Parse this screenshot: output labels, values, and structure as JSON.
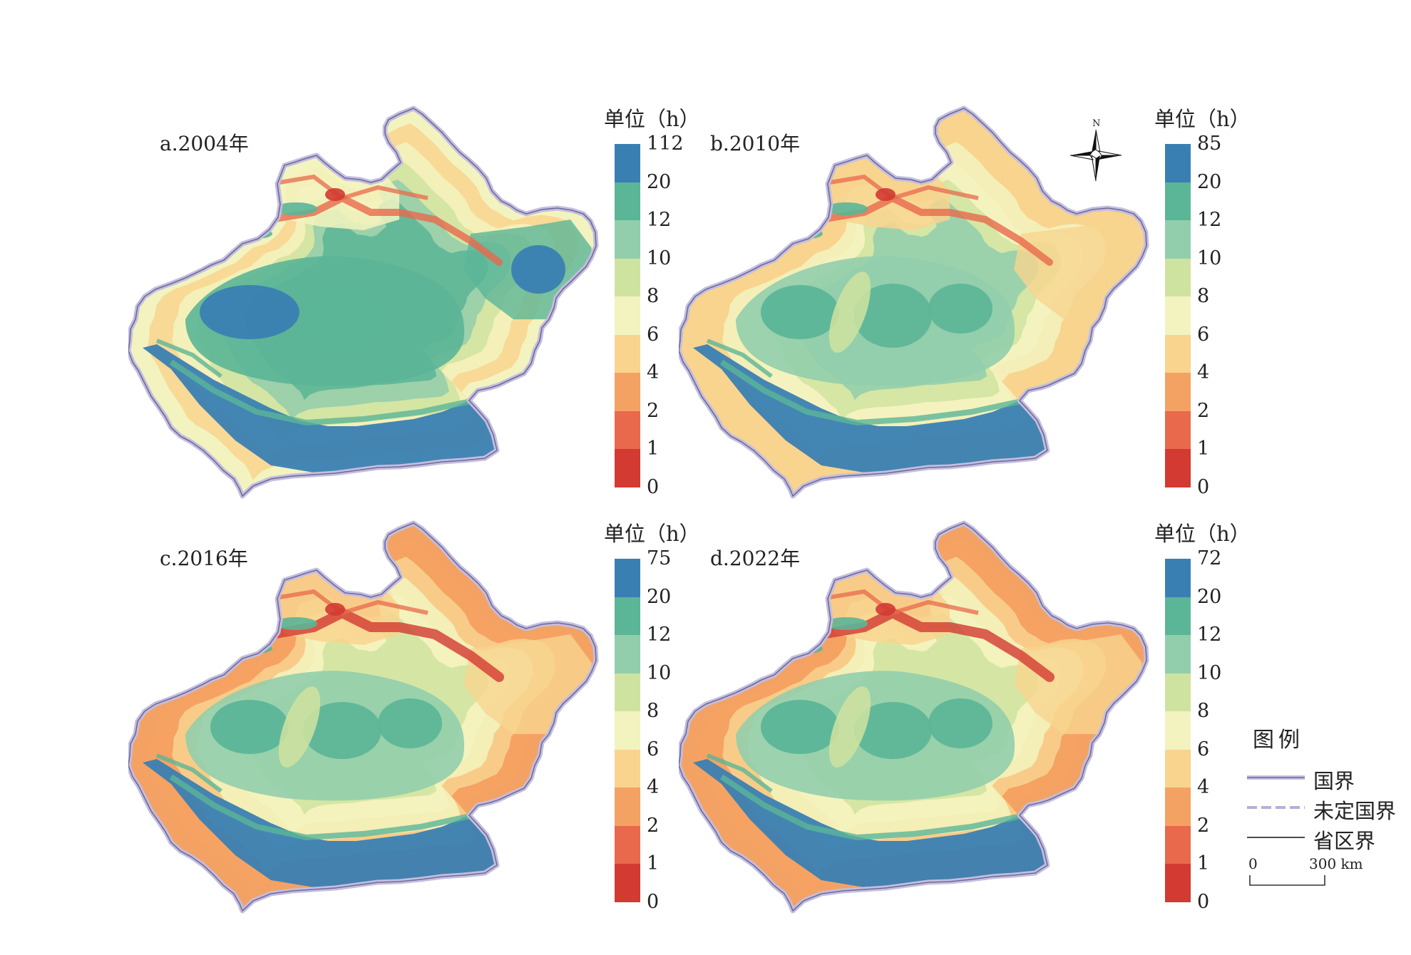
{
  "panels": [
    {
      "label": "a.2004年",
      "unit": "单位（h）",
      "ticks": [
        "112",
        "20",
        "12",
        "10",
        "8",
        "6",
        "4",
        "2",
        "1",
        "0"
      ],
      "variant": 0
    },
    {
      "label": "b.2010年",
      "unit": "单位（h）",
      "ticks": [
        "85",
        "20",
        "12",
        "10",
        "8",
        "6",
        "4",
        "2",
        "1",
        "0"
      ],
      "variant": 1
    },
    {
      "label": "c.2016年",
      "unit": "单位（h）",
      "ticks": [
        "75",
        "20",
        "12",
        "10",
        "8",
        "6",
        "4",
        "2",
        "1",
        "0"
      ],
      "variant": 2
    },
    {
      "label": "d.2022年",
      "unit": "单位（h）",
      "ticks": [
        "72",
        "20",
        "12",
        "10",
        "8",
        "6",
        "4",
        "2",
        "1",
        "0"
      ],
      "variant": 3
    }
  ],
  "color_scale": [
    "#3a7fb2",
    "#5bb597",
    "#92ceac",
    "#cfe3a0",
    "#f3f3bf",
    "#f8d48e",
    "#f4a263",
    "#e8694c",
    "#d23a32"
  ],
  "north_label": "N",
  "legend": {
    "title": "图例",
    "items": [
      {
        "label": "国界",
        "line": "border"
      },
      {
        "label": "未定国界",
        "line": "undetermined"
      },
      {
        "label": "省区界",
        "line": "province"
      }
    ],
    "scale_start": "0",
    "scale_end": "300 km"
  }
}
